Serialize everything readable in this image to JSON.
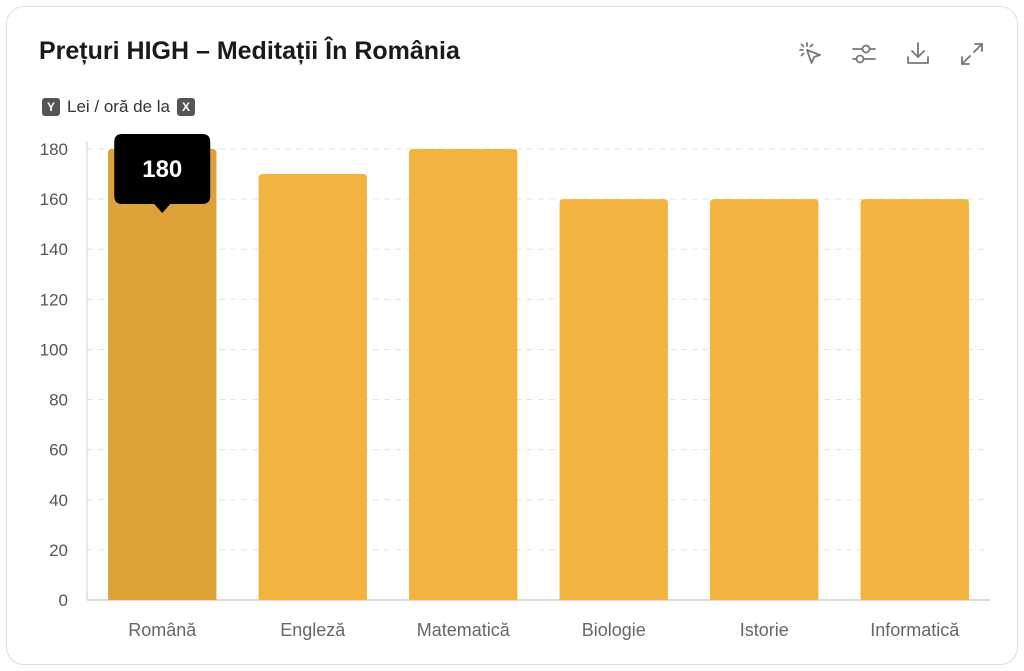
{
  "header": {
    "title": "Prețuri HIGH – Meditații În România",
    "tools": [
      {
        "icon": "select-pointer-icon"
      },
      {
        "icon": "sliders-icon"
      },
      {
        "icon": "download-icon"
      },
      {
        "icon": "expand-icon"
      }
    ]
  },
  "legend": {
    "y_chip": "Y",
    "text": "Lei / oră de la",
    "x_chip": "X"
  },
  "chart_data": {
    "type": "bar",
    "title": "Prețuri HIGH – Meditații În România",
    "ylabel": "",
    "xlabel": "",
    "categories": [
      "Română",
      "Engleză",
      "Matematică",
      "Biologie",
      "Istorie",
      "Informatică"
    ],
    "values": [
      180,
      170,
      180,
      160,
      160,
      160
    ],
    "ylim": [
      0,
      180
    ],
    "yticks": [
      0,
      20,
      40,
      60,
      80,
      100,
      120,
      140,
      160,
      180
    ],
    "grid": true,
    "colors": {
      "bar": "#f3b33f",
      "bar_highlight": "#dea338",
      "grid": "#e3e3e3",
      "tooltip_bg": "#000000"
    },
    "tooltip": {
      "category_index": 0,
      "text": "180"
    }
  }
}
